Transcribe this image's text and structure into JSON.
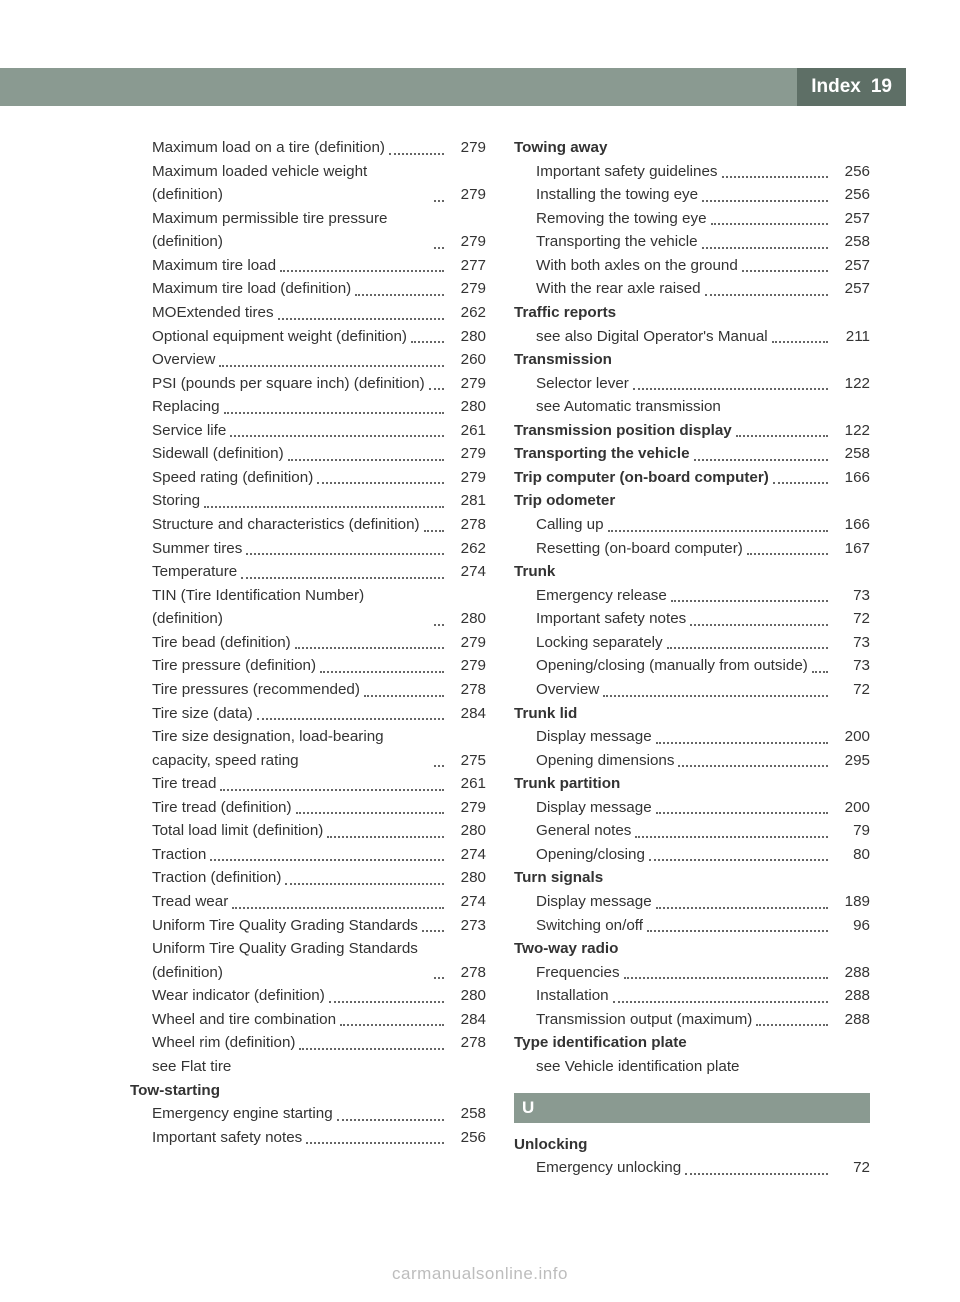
{
  "header": {
    "title": "Index",
    "page_number": "19"
  },
  "footer": "carmanualsonline.info",
  "section_letter": "U",
  "col_left": [
    {
      "t": "sub",
      "label": "Maximum load on a tire (definition)",
      "page": "279"
    },
    {
      "t": "sub",
      "label": "Maximum loaded vehicle weight (definition)",
      "page": "279"
    },
    {
      "t": "sub",
      "label": "Maximum permissible tire pressure (definition)",
      "page": "279"
    },
    {
      "t": "sub",
      "label": "Maximum tire load",
      "page": "277"
    },
    {
      "t": "sub",
      "label": "Maximum tire load (definition)",
      "page": "279"
    },
    {
      "t": "sub",
      "label": "MOExtended tires",
      "page": "262"
    },
    {
      "t": "sub",
      "label": "Optional equipment weight (definition)",
      "page": "280"
    },
    {
      "t": "sub",
      "label": "Overview",
      "page": "260"
    },
    {
      "t": "sub",
      "label": "PSI (pounds per square inch) (definition)",
      "page": "279"
    },
    {
      "t": "sub",
      "label": "Replacing",
      "page": "280"
    },
    {
      "t": "sub",
      "label": "Service life",
      "page": "261"
    },
    {
      "t": "sub",
      "label": "Sidewall (definition)",
      "page": "279"
    },
    {
      "t": "sub",
      "label": "Speed rating (definition)",
      "page": "279"
    },
    {
      "t": "sub",
      "label": "Storing",
      "page": "281"
    },
    {
      "t": "sub",
      "label": "Structure and characteristics (definition)",
      "page": "278"
    },
    {
      "t": "sub",
      "label": "Summer tires",
      "page": "262"
    },
    {
      "t": "sub",
      "label": "Temperature",
      "page": "274"
    },
    {
      "t": "sub",
      "label": "TIN (Tire Identification Number) (definition)",
      "page": "280"
    },
    {
      "t": "sub",
      "label": "Tire bead (definition)",
      "page": "279"
    },
    {
      "t": "sub",
      "label": "Tire pressure (definition)",
      "page": "279"
    },
    {
      "t": "sub",
      "label": "Tire pressures (recommended)",
      "page": "278"
    },
    {
      "t": "sub",
      "label": "Tire size (data)",
      "page": "284"
    },
    {
      "t": "sub",
      "label": "Tire size designation, load-bearing capacity, speed rating",
      "page": "275"
    },
    {
      "t": "sub",
      "label": "Tire tread",
      "page": "261"
    },
    {
      "t": "sub",
      "label": "Tire tread (definition)",
      "page": "279"
    },
    {
      "t": "sub",
      "label": "Total load limit (definition)",
      "page": "280"
    },
    {
      "t": "sub",
      "label": "Traction",
      "page": "274"
    },
    {
      "t": "sub",
      "label": "Traction (definition)",
      "page": "280"
    },
    {
      "t": "sub",
      "label": "Tread wear",
      "page": "274"
    },
    {
      "t": "sub",
      "label": "Uniform Tire Quality Grading Standards",
      "page": "273"
    },
    {
      "t": "sub",
      "label": "Uniform Tire Quality Grading Standards (definition)",
      "page": "278"
    },
    {
      "t": "sub",
      "label": "Wear indicator (definition)",
      "page": "280"
    },
    {
      "t": "sub",
      "label": "Wheel and tire combination",
      "page": "284"
    },
    {
      "t": "sub",
      "label": "Wheel rim (definition)",
      "page": "278"
    },
    {
      "t": "sub",
      "label": "see Flat tire",
      "page": ""
    },
    {
      "t": "head",
      "label": "Tow-starting"
    },
    {
      "t": "sub",
      "label": "Emergency engine starting",
      "page": "258"
    },
    {
      "t": "sub",
      "label": "Important safety notes",
      "page": "256"
    }
  ],
  "col_right": [
    {
      "t": "head",
      "label": "Towing away"
    },
    {
      "t": "sub",
      "label": "Important safety guidelines",
      "page": "256"
    },
    {
      "t": "sub",
      "label": "Installing the towing eye",
      "page": "256"
    },
    {
      "t": "sub",
      "label": "Removing the towing eye",
      "page": "257"
    },
    {
      "t": "sub",
      "label": "Transporting the vehicle",
      "page": "258"
    },
    {
      "t": "sub",
      "label": "With both axles on the ground",
      "page": "257"
    },
    {
      "t": "sub",
      "label": "With the rear axle raised",
      "page": "257"
    },
    {
      "t": "head",
      "label": "Traffic reports"
    },
    {
      "t": "sub",
      "label": "see also Digital Operator's Manual",
      "page": "211"
    },
    {
      "t": "head",
      "label": "Transmission"
    },
    {
      "t": "sub",
      "label": "Selector lever",
      "page": "122"
    },
    {
      "t": "sub",
      "label": "see Automatic transmission",
      "page": ""
    },
    {
      "t": "boldentry",
      "label": "Transmission position display",
      "page": "122"
    },
    {
      "t": "boldentry",
      "label": "Transporting the vehicle",
      "page": "258"
    },
    {
      "t": "boldentry",
      "label": "Trip computer (on-board computer)",
      "page": "166"
    },
    {
      "t": "head",
      "label": "Trip odometer"
    },
    {
      "t": "sub",
      "label": "Calling up",
      "page": "166"
    },
    {
      "t": "sub",
      "label": "Resetting (on-board computer)",
      "page": "167"
    },
    {
      "t": "head",
      "label": "Trunk"
    },
    {
      "t": "sub",
      "label": "Emergency release",
      "page": "73"
    },
    {
      "t": "sub",
      "label": "Important safety notes",
      "page": "72"
    },
    {
      "t": "sub",
      "label": "Locking separately",
      "page": "73"
    },
    {
      "t": "sub",
      "label": "Opening/closing (manually from outside)",
      "page": "73"
    },
    {
      "t": "sub",
      "label": "Overview",
      "page": "72"
    },
    {
      "t": "head",
      "label": "Trunk lid"
    },
    {
      "t": "sub",
      "label": "Display message",
      "page": "200"
    },
    {
      "t": "sub",
      "label": "Opening dimensions",
      "page": "295"
    },
    {
      "t": "head",
      "label": "Trunk partition"
    },
    {
      "t": "sub",
      "label": "Display message",
      "page": "200"
    },
    {
      "t": "sub",
      "label": "General notes",
      "page": "79"
    },
    {
      "t": "sub",
      "label": "Opening/closing",
      "page": "80"
    },
    {
      "t": "head",
      "label": "Turn signals"
    },
    {
      "t": "sub",
      "label": "Display message",
      "page": "189"
    },
    {
      "t": "sub",
      "label": "Switching on/off",
      "page": "96"
    },
    {
      "t": "head",
      "label": "Two-way radio"
    },
    {
      "t": "sub",
      "label": "Frequencies",
      "page": "288"
    },
    {
      "t": "sub",
      "label": "Installation",
      "page": "288"
    },
    {
      "t": "sub",
      "label": "Transmission output (maximum)",
      "page": "288"
    },
    {
      "t": "head",
      "label": "Type identification plate"
    },
    {
      "t": "sub",
      "label": "see Vehicle identification plate",
      "page": ""
    },
    {
      "t": "letter"
    },
    {
      "t": "head",
      "label": "Unlocking"
    },
    {
      "t": "sub",
      "label": "Emergency unlocking",
      "page": "72"
    }
  ]
}
